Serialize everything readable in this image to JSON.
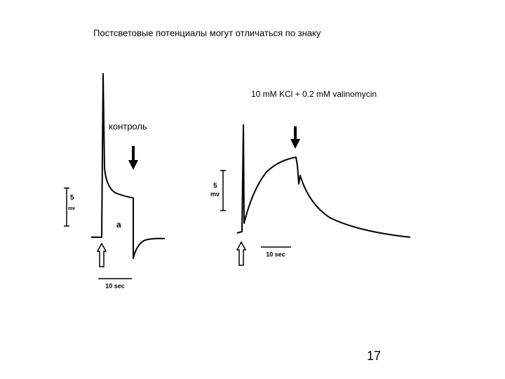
{
  "title": "Постсветовые потенциалы могут отличаться по знаку",
  "panels": [
    {
      "label": "контроль",
      "scale_value": "5",
      "scale_unit": "mv",
      "marker": "a",
      "time_scale": "10 sec"
    },
    {
      "label": "10 mM KCl + 0.2 mM valinomycin",
      "scale_value": "5",
      "scale_unit": "mv",
      "time_scale": "10 sec"
    }
  ],
  "page_number": "17"
}
